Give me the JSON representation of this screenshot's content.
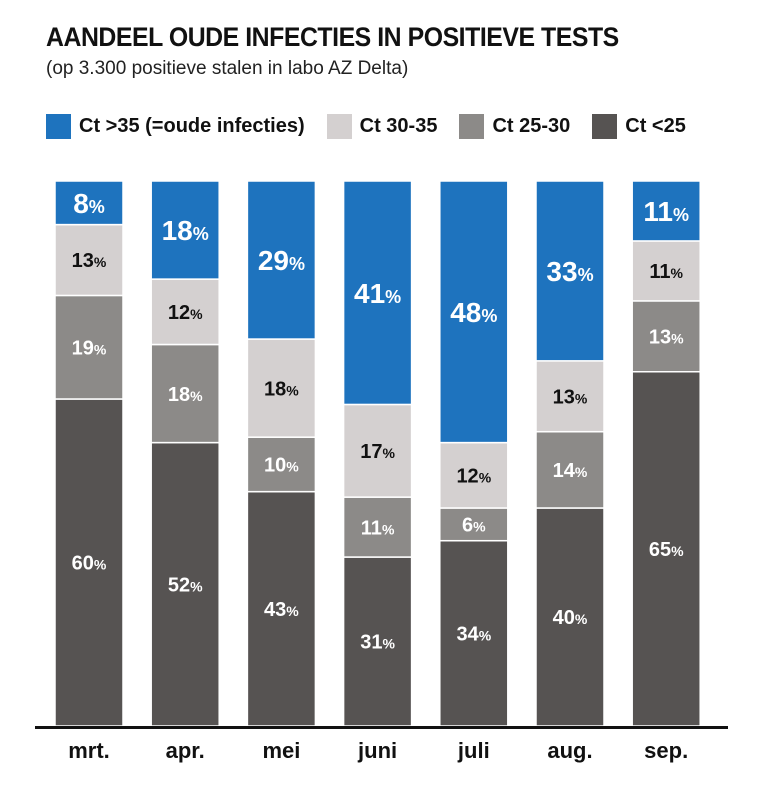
{
  "colors": {
    "ct_over_35": "#1e73be",
    "ct_30_35": "#d4d0d0",
    "ct_25_30": "#8c8a88",
    "ct_under_25": "#565352"
  },
  "chart_data": {
    "type": "bar",
    "stacked": true,
    "title": "AANDEEL OUDE INFECTIES IN POSITIEVE TESTS",
    "subtitle": "(op 3.300 positieve stalen in labo AZ Delta)",
    "categories": [
      "mrt.",
      "apr.",
      "mei",
      "juni",
      "juli",
      "aug.",
      "sep."
    ],
    "legend_position": "top",
    "grid": false,
    "ylim": [
      0,
      100
    ],
    "value_suffix": "%",
    "series": [
      {
        "name": "Ct <25",
        "color_key": "ct_under_25",
        "values": [
          60,
          52,
          43,
          31,
          34,
          40,
          65
        ]
      },
      {
        "name": "Ct 25-30",
        "color_key": "ct_25_30",
        "values": [
          19,
          18,
          10,
          11,
          6,
          14,
          13
        ]
      },
      {
        "name": "Ct 30-35",
        "color_key": "ct_30_35",
        "values": [
          13,
          12,
          18,
          17,
          12,
          13,
          11
        ]
      },
      {
        "name": "Ct >35 (=oude infecties)",
        "color_key": "ct_over_35",
        "values": [
          8,
          18,
          29,
          41,
          48,
          33,
          11
        ]
      }
    ],
    "legend_order": [
      "Ct >35 (=oude infecties)",
      "Ct 30-35",
      "Ct 25-30",
      "Ct <25"
    ]
  }
}
